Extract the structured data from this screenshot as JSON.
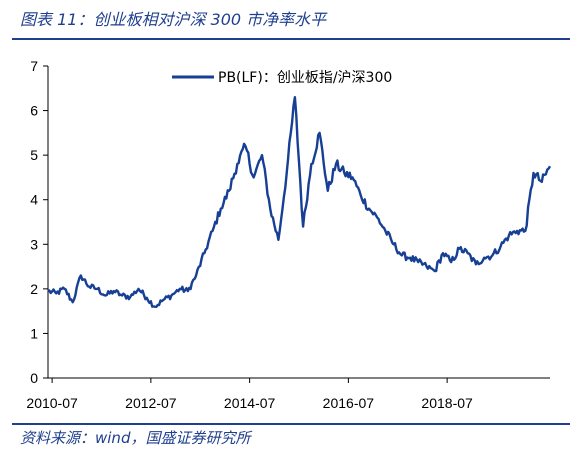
{
  "figure": {
    "title": "图表 11：创业板相对沪深 300 市净率水平",
    "source": "资料来源：wind，国盛证券研究所"
  },
  "colors": {
    "accent": "#1f3f8f",
    "series": "#173f94"
  },
  "chart_data": {
    "type": "line",
    "title": "",
    "xlabel": "",
    "ylabel": "",
    "ylim": [
      0,
      7
    ],
    "yticks": [
      "0",
      "1",
      "2",
      "3",
      "4",
      "5",
      "6",
      "7"
    ],
    "xticks": [
      "2010-07",
      "2012-07",
      "2014-07",
      "2016-07",
      "2018-07"
    ],
    "grid": false,
    "legend": "top-center",
    "series": [
      {
        "name": "PB(LF)：创业板指/沪深300",
        "x": [
          "2010-06",
          "2010-08",
          "2010-10",
          "2010-12",
          "2011-02",
          "2011-04",
          "2011-06",
          "2011-08",
          "2011-10",
          "2011-12",
          "2012-02",
          "2012-04",
          "2012-06",
          "2012-08",
          "2012-10",
          "2012-12",
          "2013-02",
          "2013-04",
          "2013-06",
          "2013-08",
          "2013-10",
          "2013-12",
          "2014-02",
          "2014-04",
          "2014-06",
          "2014-08",
          "2014-10",
          "2014-12",
          "2015-02",
          "2015-04",
          "2015-06",
          "2015-08",
          "2015-10",
          "2015-12",
          "2016-02",
          "2016-04",
          "2016-06",
          "2016-08",
          "2016-10",
          "2016-12",
          "2017-02",
          "2017-04",
          "2017-06",
          "2017-08",
          "2017-10",
          "2017-12",
          "2018-02",
          "2018-04",
          "2018-06",
          "2018-08",
          "2018-10",
          "2018-12",
          "2019-02",
          "2019-04",
          "2019-06",
          "2019-08",
          "2019-10",
          "2019-12",
          "2020-02",
          "2020-04",
          "2020-06",
          "2020-08"
        ],
        "values": [
          1.95,
          1.9,
          2.0,
          1.7,
          2.3,
          2.05,
          2.0,
          1.85,
          1.95,
          1.85,
          1.82,
          2.0,
          1.8,
          1.6,
          1.75,
          1.85,
          2.0,
          1.95,
          2.3,
          2.8,
          3.3,
          3.8,
          4.2,
          4.8,
          5.2,
          4.5,
          5.0,
          3.8,
          3.1,
          4.6,
          6.3,
          3.4,
          4.8,
          5.5,
          4.2,
          4.8,
          4.6,
          4.5,
          4.1,
          3.8,
          3.6,
          3.3,
          3.0,
          2.75,
          2.7,
          2.6,
          2.5,
          2.4,
          2.8,
          2.6,
          2.9,
          2.8,
          2.55,
          2.7,
          2.75,
          2.95,
          3.2,
          3.3,
          3.3,
          4.6,
          4.4,
          4.75
        ]
      }
    ]
  }
}
